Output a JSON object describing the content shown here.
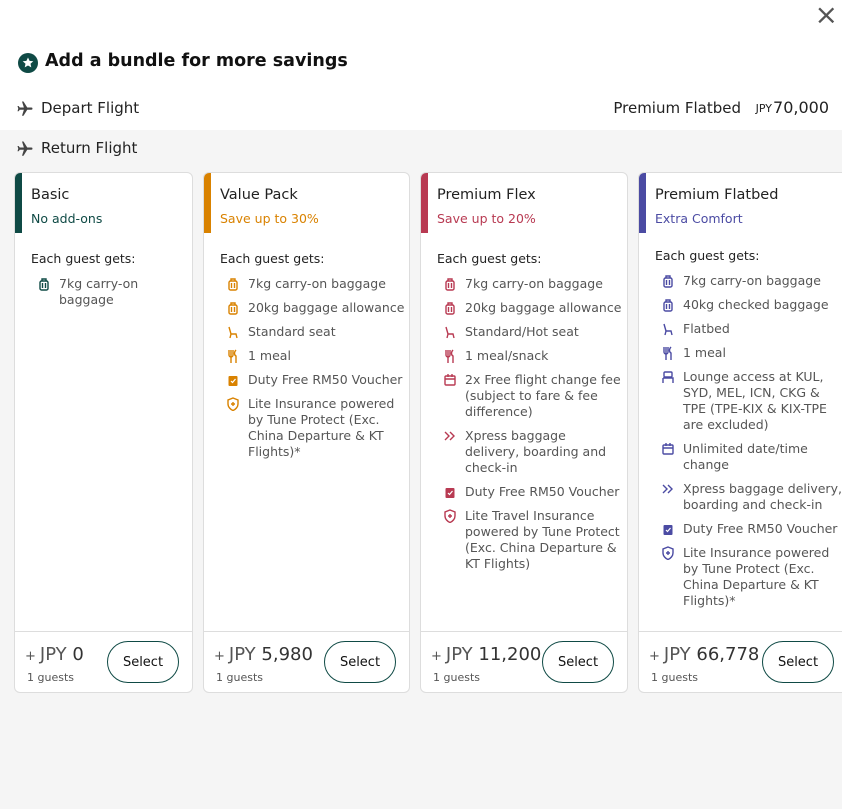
{
  "header": {
    "title": "Add a bundle for more savings",
    "close": "×"
  },
  "depart": {
    "label": "Depart Flight",
    "bundle": "Premium Flatbed",
    "currency": "JPY",
    "price": "70,000"
  },
  "return": {
    "label": "Return Flight"
  },
  "cards": [
    {
      "name": "Basic",
      "tagline": "No add-ons",
      "color": "#0f4a45",
      "intro": "Each guest gets:",
      "features": [
        "7kg carry-on baggage"
      ],
      "prefix": "+",
      "currency": "JPY",
      "price": "0",
      "guests": "1 guests",
      "button": "Select"
    },
    {
      "name": "Value Pack",
      "tagline": "Save up to 30%",
      "color": "#d98200",
      "intro": "Each guest gets:",
      "features": [
        "7kg carry-on baggage",
        "20kg baggage allowance",
        "Standard seat",
        "1 meal",
        "Duty Free RM50 Voucher",
        "Lite Insurance powered by Tune Protect (Exc. China Departure & KT Flights)*"
      ],
      "prefix": "+",
      "currency": "JPY",
      "price": "5,980",
      "guests": "1 guests",
      "button": "Select"
    },
    {
      "name": "Premium Flex",
      "tagline": "Save up to 20%",
      "color": "#b83a52",
      "intro": "Each guest gets:",
      "features": [
        "7kg carry-on baggage",
        "20kg baggage allowance",
        "Standard/Hot seat",
        "1 meal/snack",
        "2x Free flight change fee (subject to fare & fee difference)",
        "Xpress baggage delivery, boarding and check-in",
        "Duty Free RM50 Voucher",
        "Lite Travel Insurance powered by Tune Protect (Exc. China Departure & KT Flights)"
      ],
      "prefix": "+",
      "currency": "JPY",
      "price": "11,200",
      "guests": "1 guests",
      "button": "Select"
    },
    {
      "name": "Premium Flatbed",
      "tagline": "Extra Comfort",
      "color": "#4b4ba3",
      "intro": "Each guest gets:",
      "features": [
        "7kg carry-on baggage",
        "40kg checked baggage",
        "Flatbed",
        "1 meal",
        "Lounge access at KUL, SYD, MEL, ICN, CKG & TPE (TPE-KIX & KIX-TPE are excluded)",
        "Unlimited date/time change",
        "Xpress baggage delivery, boarding and check-in",
        "Duty Free RM50 Voucher",
        "Lite Insurance powered by Tune Protect (Exc. China Departure & KT Flights)*"
      ],
      "prefix": "+",
      "currency": "JPY",
      "price": "66,778",
      "guests": "1 guests",
      "button": "Select"
    }
  ]
}
